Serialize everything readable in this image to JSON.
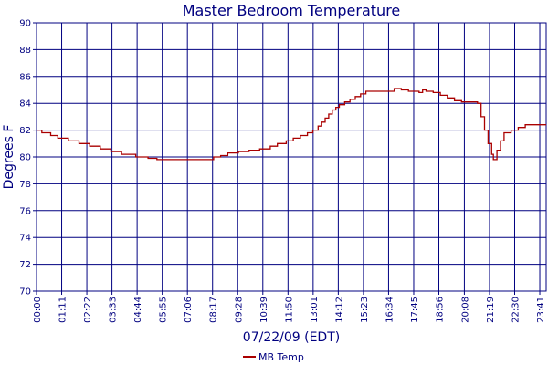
{
  "chart_data": {
    "type": "line",
    "title": "Master Bedroom Temperature",
    "xlabel": "07/22/09 (EDT)",
    "ylabel": "Degrees F",
    "ylim": [
      70,
      90
    ],
    "yticks": [
      70,
      72,
      74,
      76,
      78,
      80,
      82,
      84,
      86,
      88,
      90
    ],
    "xticks": [
      "00:00",
      "01:11",
      "02:22",
      "03:33",
      "04:44",
      "05:55",
      "07:06",
      "08:17",
      "09:28",
      "10:39",
      "11:50",
      "13:01",
      "14:12",
      "15:23",
      "16:34",
      "17:45",
      "18:56",
      "20:08",
      "21:19",
      "22:30",
      "23:41"
    ],
    "xlim": [
      "00:00",
      "23:59"
    ],
    "grid": true,
    "legend_position": "bottom-center",
    "colors": {
      "series": "#aa0000",
      "grid": "#000080",
      "text": "#000080"
    },
    "series": [
      {
        "name": "MB Temp",
        "step": true,
        "x": [
          "00:00",
          "00:15",
          "00:40",
          "01:00",
          "01:30",
          "02:00",
          "02:30",
          "03:00",
          "03:30",
          "04:00",
          "04:40",
          "05:15",
          "05:40",
          "06:00",
          "06:40",
          "07:20",
          "08:00",
          "08:20",
          "08:40",
          "09:00",
          "09:30",
          "10:00",
          "10:30",
          "11:00",
          "11:20",
          "11:45",
          "12:05",
          "12:25",
          "12:45",
          "13:00",
          "13:15",
          "13:25",
          "13:35",
          "13:45",
          "13:55",
          "14:05",
          "14:15",
          "14:30",
          "14:45",
          "15:00",
          "15:15",
          "15:30",
          "16:00",
          "16:30",
          "16:50",
          "17:10",
          "17:30",
          "17:45",
          "18:00",
          "18:10",
          "18:20",
          "18:40",
          "19:00",
          "19:20",
          "19:40",
          "20:00",
          "20:30",
          "20:45",
          "20:55",
          "21:05",
          "21:15",
          "21:25",
          "21:30",
          "21:40",
          "21:50",
          "22:00",
          "22:20",
          "22:40",
          "23:00",
          "23:20",
          "23:59"
        ],
        "values": [
          82.0,
          81.8,
          81.6,
          81.4,
          81.2,
          81.0,
          80.8,
          80.6,
          80.4,
          80.2,
          80.0,
          79.9,
          79.8,
          79.8,
          79.8,
          79.8,
          79.8,
          80.0,
          80.1,
          80.3,
          80.4,
          80.5,
          80.6,
          80.8,
          81.0,
          81.2,
          81.4,
          81.6,
          81.8,
          82.0,
          82.3,
          82.6,
          82.9,
          83.2,
          83.5,
          83.7,
          83.9,
          84.1,
          84.3,
          84.5,
          84.7,
          84.9,
          84.9,
          84.9,
          85.1,
          85.0,
          84.9,
          84.9,
          84.8,
          85.0,
          84.9,
          84.8,
          84.6,
          84.4,
          84.2,
          84.1,
          84.1,
          84.0,
          83.0,
          82.0,
          81.0,
          80.2,
          79.8,
          80.5,
          81.2,
          81.8,
          82.0,
          82.2,
          82.4,
          82.4,
          82.4
        ]
      }
    ]
  }
}
